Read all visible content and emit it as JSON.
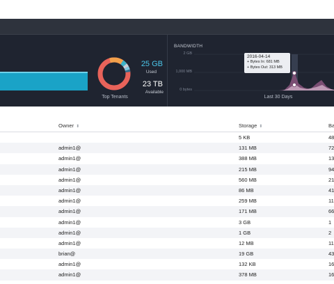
{
  "dashboard": {
    "storage": {
      "used_value": "25 GB",
      "used_label": "Used",
      "available_value": "23 TB",
      "available_label": "Available",
      "donut_caption": "Top Tenants"
    },
    "bandwidth": {
      "title": "BANDWIDTH",
      "y_ticks": [
        "2 GB",
        "1,000 MB",
        "0 bytes"
      ],
      "footer": "Last 30 Days",
      "tooltip": {
        "date": "2016-04-14",
        "bytes_in": "+ Bytes In: 681 MB",
        "bytes_out": "+ Bytes Out: 313 MB"
      }
    }
  },
  "table": {
    "columns": {
      "owner": "Owner",
      "storage": "Storage",
      "bandwidth": "Ba"
    },
    "rows": [
      {
        "owner": "",
        "storage": "5 KB",
        "bandwidth": "48"
      },
      {
        "owner": "admin1@",
        "storage": "131 MB",
        "bandwidth": "72"
      },
      {
        "owner": "admin1@",
        "storage": "388 MB",
        "bandwidth": "13"
      },
      {
        "owner": "admin1@",
        "storage": "215 MB",
        "bandwidth": "94"
      },
      {
        "owner": "admin1@",
        "storage": "560 MB",
        "bandwidth": "21"
      },
      {
        "owner": "admin1@",
        "storage": "86 MB",
        "bandwidth": "41"
      },
      {
        "owner": "admin1@",
        "storage": "259 MB",
        "bandwidth": "11"
      },
      {
        "owner": "admin1@",
        "storage": "171 MB",
        "bandwidth": "66"
      },
      {
        "owner": "admin1@",
        "storage": "3 GB",
        "bandwidth": "1"
      },
      {
        "owner": "admin1@",
        "storage": "1 GB",
        "bandwidth": "2"
      },
      {
        "owner": "admin1@",
        "storage": "12 MB",
        "bandwidth": "11"
      },
      {
        "owner": "brian@",
        "storage": "19 GB",
        "bandwidth": "43"
      },
      {
        "owner": "admin1@",
        "storage": "132 KB",
        "bandwidth": "16"
      },
      {
        "owner": "admin1@",
        "storage": "378 MB",
        "bandwidth": "16"
      }
    ]
  },
  "colors": {
    "dashboard_bg": "#1f2430",
    "usage_bar": "#1aa3c7",
    "used_accent": "#4cc6ea",
    "bandwidth_in": "#7a4e73",
    "bandwidth_out": "#c9a7c0"
  },
  "icons": {
    "sort": "sort-arrows-icon"
  }
}
